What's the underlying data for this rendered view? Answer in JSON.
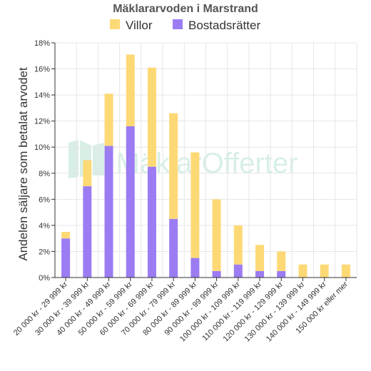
{
  "chart_data": {
    "type": "bar",
    "stacked": true,
    "title": "Mäklararvoden i Marstrand",
    "ylabel": "Andelen säljare som betalat arvodet",
    "xlabel": "",
    "ylim": [
      0,
      18
    ],
    "yticks": [
      "0%",
      "2%",
      "4%",
      "6%",
      "8%",
      "10%",
      "12%",
      "14%",
      "16%",
      "18%"
    ],
    "grid": true,
    "legend_position": "top",
    "watermark": "MäklarOfferter",
    "categories": [
      "20 000 kr - 29 999 kr",
      "30 000 kr - 39 999 kr",
      "40 000 kr - 49 999 kr",
      "50 000 kr - 59 999 kr",
      "60 000 kr - 69 999 kr",
      "70 000 kr - 79 999 kr",
      "80 000 kr - 89 999 kr",
      "90 000 kr - 99 999 kr",
      "100 000 kr - 109 999 kr",
      "110 000 kr - 119 999 kr",
      "120 000 kr - 129 999 kr",
      "130 000 kr - 139 999 kr",
      "140 000 kr - 149 999 kr",
      "150 000 kr eller mer"
    ],
    "series": [
      {
        "name": "Villor",
        "color": "#fdd976",
        "values": [
          0.5,
          2.0,
          4.0,
          5.5,
          7.6,
          8.1,
          8.1,
          5.5,
          3.0,
          2.0,
          1.5,
          1.0,
          1.0,
          1.0
        ]
      },
      {
        "name": "Bostadsrätter",
        "color": "#9b7cf2",
        "values": [
          3.0,
          7.0,
          10.1,
          11.6,
          8.5,
          4.5,
          1.5,
          0.5,
          1.0,
          0.5,
          0.5,
          0,
          0,
          0
        ]
      }
    ]
  }
}
